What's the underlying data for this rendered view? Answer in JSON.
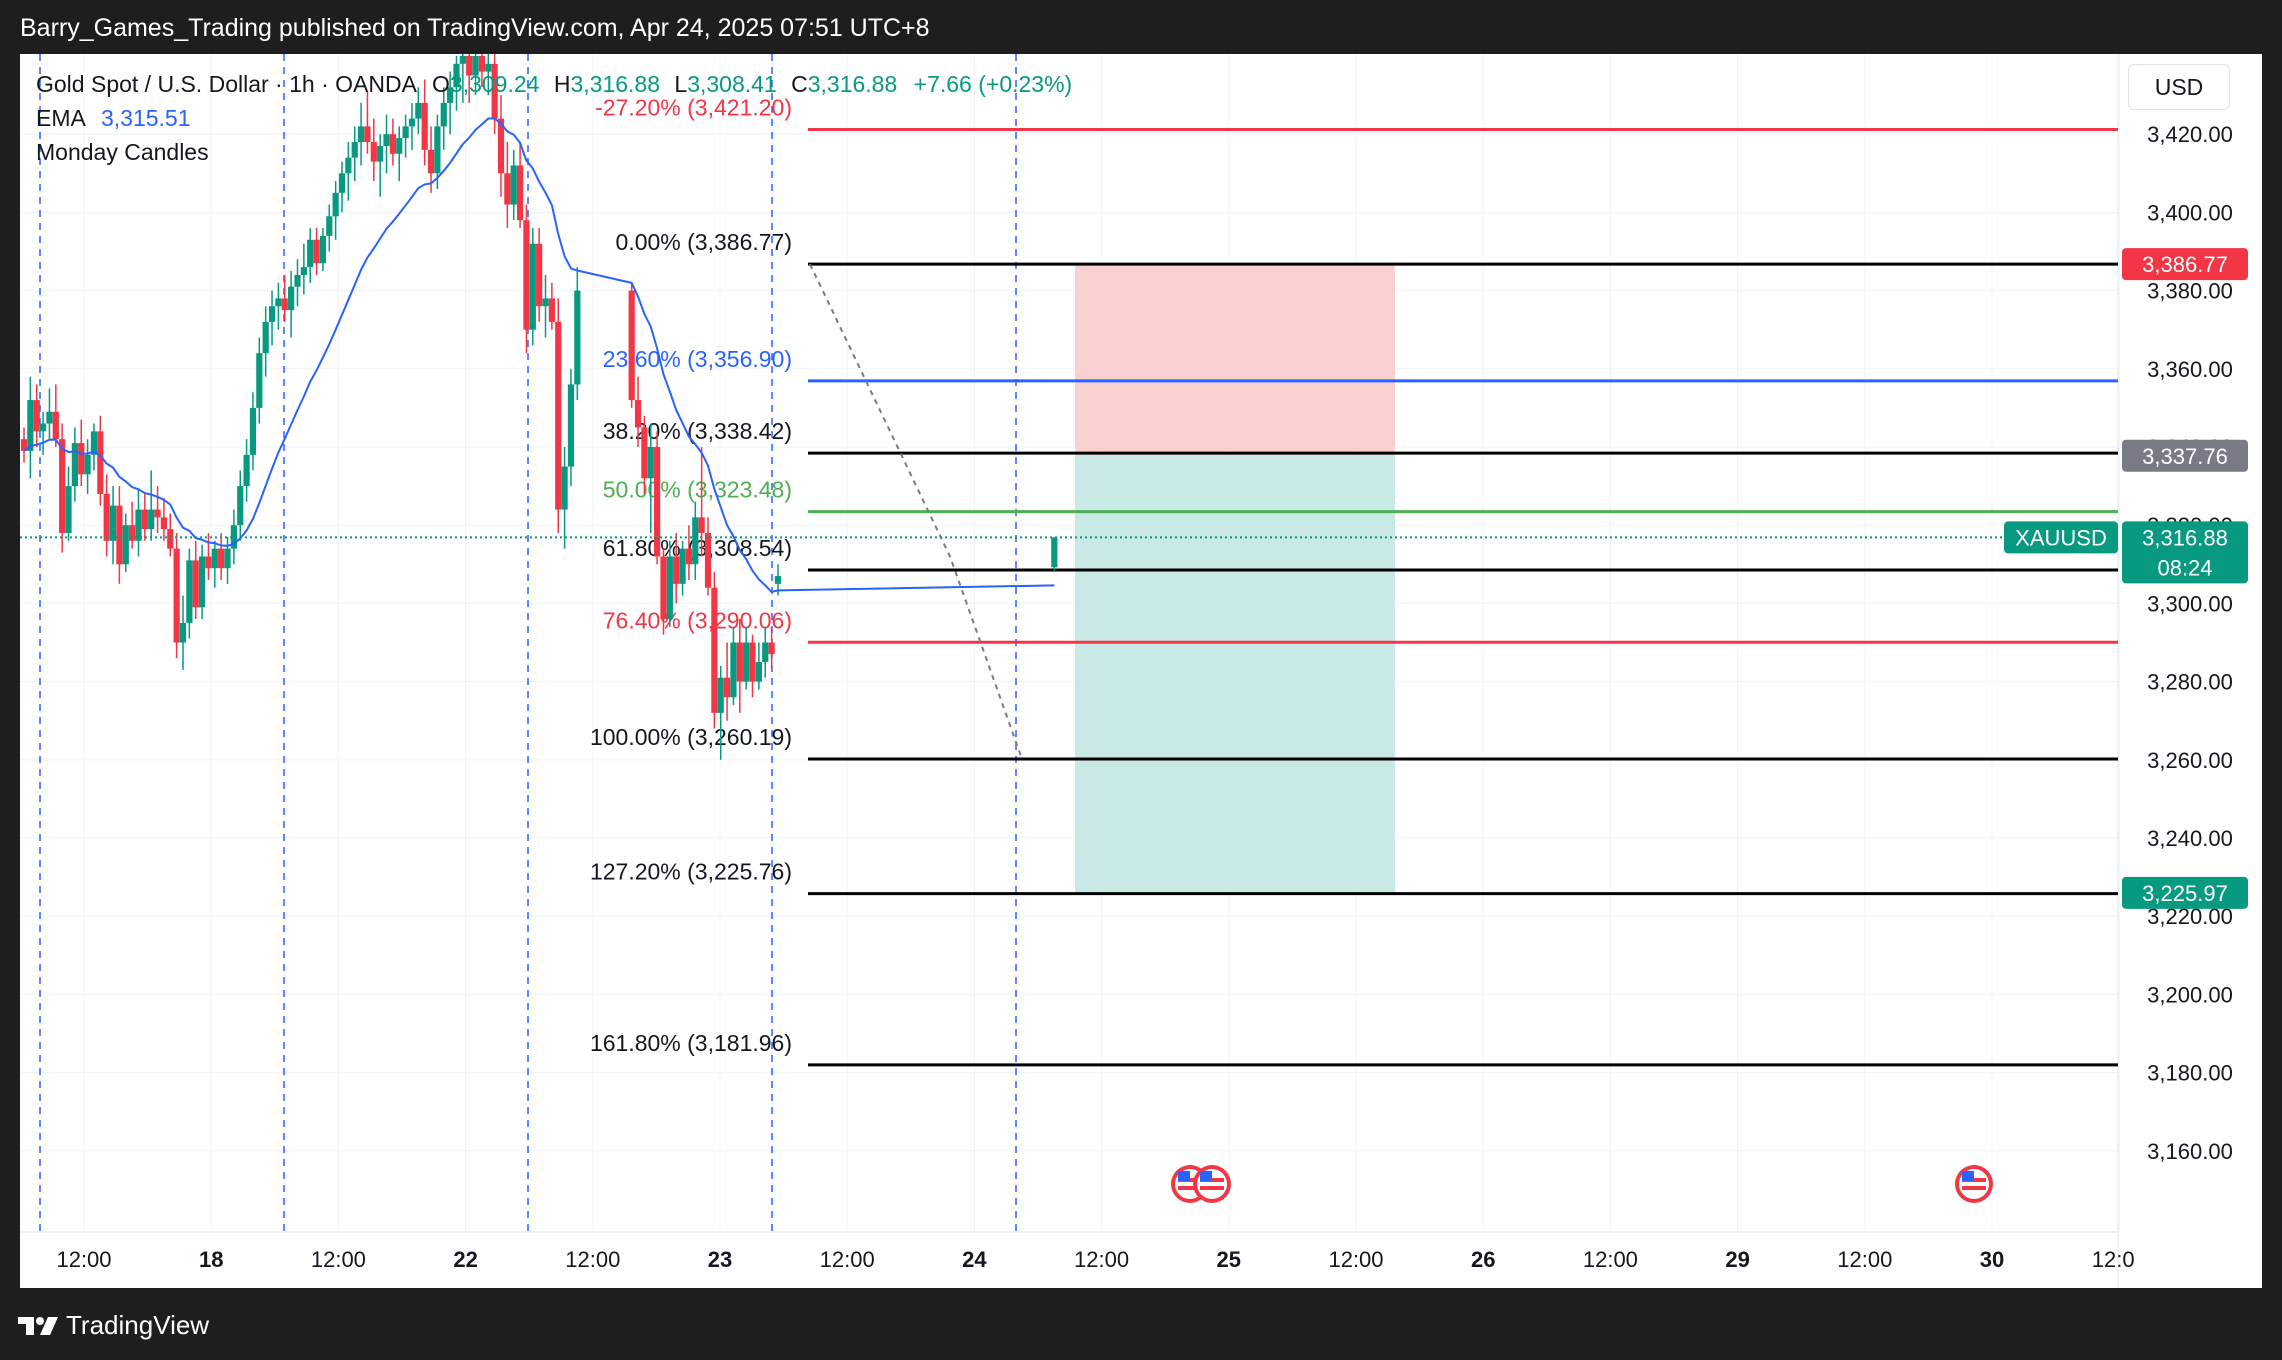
{
  "header": {
    "publisher": "Barry_Games_Trading published on TradingView.com, Apr 24, 2025 07:51 UTC+8"
  },
  "legend": {
    "symbol": "Gold Spot / U.S. Dollar · 1h · OANDA",
    "o_label": "O",
    "o_value": "3,309.24",
    "h_label": "H",
    "h_value": "3,316.88",
    "l_label": "L",
    "l_value": "3,308.41",
    "c_label": "C",
    "c_value": "3,316.88",
    "change": "+7.66 (+0.23%)",
    "ema_label": "EMA",
    "ema_value": "3,315.51",
    "indicator2": "Monday Candles"
  },
  "price_scale": {
    "currency": "USD"
  },
  "footer": {
    "brand": "TradingView"
  },
  "colors": {
    "up": "#089981",
    "down": "#f23645",
    "ema": "#2962ff",
    "fib_black": "#000000",
    "fib_blue": "#2962ff",
    "fib_green": "#4caf50",
    "fib_red": "#f23645",
    "stop_zone": "#f9d0d0",
    "target_zone": "#c8e9e5"
  },
  "chart_data": {
    "type": "candlestick",
    "symbol": "XAUUSD",
    "timeframe": "1h",
    "ylim": [
      3140,
      3440
    ],
    "y_ticks": [
      "3,160.00",
      "3,180.00",
      "3,200.00",
      "3,220.00",
      "3,240.00",
      "3,260.00",
      "3,280.00",
      "3,300.00",
      "3,320.00",
      "3,340.00",
      "3,360.00",
      "3,380.00",
      "3,400.00",
      "3,420.00"
    ],
    "x_ticks": [
      "12:00",
      "18",
      "12:00",
      "22",
      "12:00",
      "23",
      "12:00",
      "24",
      "12:00",
      "25",
      "12:00",
      "26",
      "12:00",
      "29",
      "12:00",
      "30",
      "12:0"
    ],
    "session_separators": [
      "18",
      "22",
      "23",
      "24"
    ],
    "ema_value": 3315.51,
    "candles": [
      {
        "o": 3342,
        "h": 3345,
        "l": 3336,
        "c": 3339
      },
      {
        "o": 3339,
        "h": 3358,
        "l": 3332,
        "c": 3352
      },
      {
        "o": 3352,
        "h": 3356,
        "l": 3340,
        "c": 3344
      },
      {
        "o": 3344,
        "h": 3349,
        "l": 3338,
        "c": 3346
      },
      {
        "o": 3346,
        "h": 3355,
        "l": 3342,
        "c": 3349
      },
      {
        "o": 3349,
        "h": 3356,
        "l": 3340,
        "c": 3342
      },
      {
        "o": 3342,
        "h": 3346,
        "l": 3313,
        "c": 3318
      },
      {
        "o": 3318,
        "h": 3335,
        "l": 3316,
        "c": 3330
      },
      {
        "o": 3330,
        "h": 3345,
        "l": 3326,
        "c": 3341
      },
      {
        "o": 3341,
        "h": 3347,
        "l": 3330,
        "c": 3333
      },
      {
        "o": 3333,
        "h": 3342,
        "l": 3328,
        "c": 3338
      },
      {
        "o": 3338,
        "h": 3346,
        "l": 3334,
        "c": 3344
      },
      {
        "o": 3344,
        "h": 3348,
        "l": 3325,
        "c": 3328
      },
      {
        "o": 3328,
        "h": 3333,
        "l": 3312,
        "c": 3316
      },
      {
        "o": 3316,
        "h": 3330,
        "l": 3310,
        "c": 3325
      },
      {
        "o": 3325,
        "h": 3330,
        "l": 3305,
        "c": 3310
      },
      {
        "o": 3310,
        "h": 3323,
        "l": 3308,
        "c": 3320
      },
      {
        "o": 3320,
        "h": 3326,
        "l": 3314,
        "c": 3316
      },
      {
        "o": 3316,
        "h": 3329,
        "l": 3312,
        "c": 3324
      },
      {
        "o": 3324,
        "h": 3328,
        "l": 3316,
        "c": 3319
      },
      {
        "o": 3319,
        "h": 3334,
        "l": 3316,
        "c": 3324
      },
      {
        "o": 3324,
        "h": 3330,
        "l": 3318,
        "c": 3322
      },
      {
        "o": 3322,
        "h": 3327,
        "l": 3316,
        "c": 3319
      },
      {
        "o": 3319,
        "h": 3323,
        "l": 3312,
        "c": 3314
      },
      {
        "o": 3314,
        "h": 3318,
        "l": 3286,
        "c": 3290
      },
      {
        "o": 3290,
        "h": 3302,
        "l": 3283,
        "c": 3295
      },
      {
        "o": 3295,
        "h": 3314,
        "l": 3291,
        "c": 3311
      },
      {
        "o": 3311,
        "h": 3316,
        "l": 3296,
        "c": 3299
      },
      {
        "o": 3299,
        "h": 3315,
        "l": 3296,
        "c": 3312
      },
      {
        "o": 3312,
        "h": 3318,
        "l": 3306,
        "c": 3309
      },
      {
        "o": 3309,
        "h": 3316,
        "l": 3304,
        "c": 3314
      },
      {
        "o": 3314,
        "h": 3318,
        "l": 3306,
        "c": 3309
      },
      {
        "o": 3309,
        "h": 3317,
        "l": 3305,
        "c": 3314
      },
      {
        "o": 3314,
        "h": 3324,
        "l": 3310,
        "c": 3320
      },
      {
        "o": 3320,
        "h": 3334,
        "l": 3316,
        "c": 3330
      },
      {
        "o": 3330,
        "h": 3342,
        "l": 3326,
        "c": 3338
      },
      {
        "o": 3338,
        "h": 3354,
        "l": 3334,
        "c": 3350
      },
      {
        "o": 3350,
        "h": 3368,
        "l": 3346,
        "c": 3364
      },
      {
        "o": 3364,
        "h": 3376,
        "l": 3358,
        "c": 3372
      },
      {
        "o": 3372,
        "h": 3380,
        "l": 3366,
        "c": 3376
      },
      {
        "o": 3376,
        "h": 3382,
        "l": 3370,
        "c": 3378
      },
      {
        "o": 3378,
        "h": 3384,
        "l": 3372,
        "c": 3375
      },
      {
        "o": 3375,
        "h": 3385,
        "l": 3368,
        "c": 3381
      },
      {
        "o": 3381,
        "h": 3388,
        "l": 3376,
        "c": 3384
      },
      {
        "o": 3384,
        "h": 3392,
        "l": 3379,
        "c": 3386
      },
      {
        "o": 3386,
        "h": 3396,
        "l": 3382,
        "c": 3393
      },
      {
        "o": 3393,
        "h": 3396,
        "l": 3384,
        "c": 3387
      },
      {
        "o": 3387,
        "h": 3396,
        "l": 3385,
        "c": 3394
      },
      {
        "o": 3394,
        "h": 3402,
        "l": 3390,
        "c": 3399
      },
      {
        "o": 3399,
        "h": 3408,
        "l": 3393,
        "c": 3405
      },
      {
        "o": 3405,
        "h": 3413,
        "l": 3400,
        "c": 3410
      },
      {
        "o": 3410,
        "h": 3418,
        "l": 3403,
        "c": 3414
      },
      {
        "o": 3414,
        "h": 3422,
        "l": 3408,
        "c": 3418
      },
      {
        "o": 3418,
        "h": 3428,
        "l": 3412,
        "c": 3422
      },
      {
        "o": 3422,
        "h": 3431,
        "l": 3415,
        "c": 3418
      },
      {
        "o": 3418,
        "h": 3424,
        "l": 3408,
        "c": 3413
      },
      {
        "o": 3413,
        "h": 3420,
        "l": 3404,
        "c": 3417
      },
      {
        "o": 3417,
        "h": 3425,
        "l": 3410,
        "c": 3420
      },
      {
        "o": 3420,
        "h": 3424,
        "l": 3412,
        "c": 3415
      },
      {
        "o": 3415,
        "h": 3422,
        "l": 3408,
        "c": 3419
      },
      {
        "o": 3419,
        "h": 3425,
        "l": 3414,
        "c": 3422
      },
      {
        "o": 3422,
        "h": 3428,
        "l": 3416,
        "c": 3424
      },
      {
        "o": 3424,
        "h": 3432,
        "l": 3420,
        "c": 3428
      },
      {
        "o": 3428,
        "h": 3434,
        "l": 3412,
        "c": 3416
      },
      {
        "o": 3416,
        "h": 3422,
        "l": 3405,
        "c": 3410
      },
      {
        "o": 3410,
        "h": 3425,
        "l": 3406,
        "c": 3422
      },
      {
        "o": 3422,
        "h": 3432,
        "l": 3416,
        "c": 3428
      },
      {
        "o": 3428,
        "h": 3436,
        "l": 3420,
        "c": 3432
      },
      {
        "o": 3432,
        "h": 3440,
        "l": 3426,
        "c": 3438
      },
      {
        "o": 3438,
        "h": 3442,
        "l": 3428,
        "c": 3440
      },
      {
        "o": 3440,
        "h": 3442,
        "l": 3428,
        "c": 3435
      },
      {
        "o": 3435,
        "h": 3442,
        "l": 3430,
        "c": 3440
      },
      {
        "o": 3440,
        "h": 3442,
        "l": 3432,
        "c": 3436
      },
      {
        "o": 3436,
        "h": 3442,
        "l": 3430,
        "c": 3438
      },
      {
        "o": 3438,
        "h": 3442,
        "l": 3420,
        "c": 3424
      },
      {
        "o": 3424,
        "h": 3430,
        "l": 3404,
        "c": 3410
      },
      {
        "o": 3410,
        "h": 3418,
        "l": 3396,
        "c": 3402
      },
      {
        "o": 3402,
        "h": 3416,
        "l": 3398,
        "c": 3412
      },
      {
        "o": 3412,
        "h": 3418,
        "l": 3396,
        "c": 3398
      },
      {
        "o": 3398,
        "h": 3402,
        "l": 3364,
        "c": 3370
      },
      {
        "o": 3370,
        "h": 3396,
        "l": 3366,
        "c": 3392
      },
      {
        "o": 3392,
        "h": 3396,
        "l": 3372,
        "c": 3376
      },
      {
        "o": 3376,
        "h": 3384,
        "l": 3368,
        "c": 3378
      },
      {
        "o": 3378,
        "h": 3382,
        "l": 3370,
        "c": 3372
      },
      {
        "o": 3372,
        "h": 3378,
        "l": 3318,
        "c": 3324
      },
      {
        "o": 3324,
        "h": 3340,
        "l": 3314,
        "c": 3335
      },
      {
        "o": 3335,
        "h": 3360,
        "l": 3330,
        "c": 3356
      },
      {
        "o": 3356,
        "h": 3386,
        "l": 3352,
        "c": 3380
      },
      {
        "o": 3380,
        "h": 3382,
        "l": 3350,
        "c": 3352
      },
      {
        "o": 3352,
        "h": 3358,
        "l": 3340,
        "c": 3345
      },
      {
        "o": 3345,
        "h": 3348,
        "l": 3328,
        "c": 3332
      },
      {
        "o": 3332,
        "h": 3346,
        "l": 3318,
        "c": 3340
      },
      {
        "o": 3340,
        "h": 3344,
        "l": 3310,
        "c": 3312
      },
      {
        "o": 3312,
        "h": 3314,
        "l": 3292,
        "c": 3296
      },
      {
        "o": 3296,
        "h": 3316,
        "l": 3294,
        "c": 3312
      },
      {
        "o": 3312,
        "h": 3318,
        "l": 3300,
        "c": 3305
      },
      {
        "o": 3305,
        "h": 3316,
        "l": 3302,
        "c": 3314
      },
      {
        "o": 3314,
        "h": 3320,
        "l": 3306,
        "c": 3310
      },
      {
        "o": 3310,
        "h": 3326,
        "l": 3306,
        "c": 3322
      },
      {
        "o": 3322,
        "h": 3340,
        "l": 3312,
        "c": 3318
      },
      {
        "o": 3318,
        "h": 3322,
        "l": 3302,
        "c": 3304
      },
      {
        "o": 3304,
        "h": 3308,
        "l": 3268,
        "c": 3272
      },
      {
        "o": 3272,
        "h": 3284,
        "l": 3260,
        "c": 3281
      },
      {
        "o": 3281,
        "h": 3290,
        "l": 3270,
        "c": 3276
      },
      {
        "o": 3276,
        "h": 3294,
        "l": 3274,
        "c": 3290
      },
      {
        "o": 3290,
        "h": 3296,
        "l": 3272,
        "c": 3280
      },
      {
        "o": 3280,
        "h": 3294,
        "l": 3278,
        "c": 3290
      },
      {
        "o": 3290,
        "h": 3292,
        "l": 3276,
        "c": 3280
      },
      {
        "o": 3280,
        "h": 3290,
        "l": 3278,
        "c": 3285
      },
      {
        "o": 3285,
        "h": 3294,
        "l": 3281,
        "c": 3290
      },
      {
        "o": 3290,
        "h": 3294,
        "l": 3283,
        "c": 3287
      },
      {
        "o": 3305,
        "h": 3310,
        "l": 3302,
        "c": 3307
      },
      {
        "o": 3309.24,
        "h": 3316.88,
        "l": 3308.41,
        "c": 3316.88
      }
    ],
    "fib_levels": [
      {
        "label": "0.00% (3,386.77)",
        "value": 3386.77,
        "color": "#000000"
      },
      {
        "label": "23.60% (3,356.90)",
        "value": 3356.9,
        "color": "#2962ff"
      },
      {
        "label": "38.20% (3,338.42)",
        "value": 3338.42,
        "color": "#000000"
      },
      {
        "label": "50.00% (3,323.48)",
        "value": 3323.48,
        "color": "#4caf50"
      },
      {
        "label": "61.80% (3,308.54)",
        "value": 3308.54,
        "color": "#000000"
      },
      {
        "label": "76.40% (3,290.06)",
        "value": 3290.06,
        "color": "#f23645"
      },
      {
        "label": "100.00% (3,260.19)",
        "value": 3260.19,
        "color": "#000000"
      },
      {
        "label": "127.20% (3,225.76)",
        "value": 3225.76,
        "color": "#000000"
      },
      {
        "label": "161.80% (3,181.96)",
        "value": 3181.96,
        "color": "#000000"
      },
      {
        "label": "-27.20% (3,421.20)",
        "value": 3421.2,
        "color": "#f23645"
      }
    ],
    "position": {
      "type": "short",
      "stop": 3386.77,
      "entry": 3337.76,
      "target": 3225.97
    },
    "price_labels": [
      {
        "text": "3,386.77",
        "value": 3386.77,
        "bg": "#f23645"
      },
      {
        "text": "3,337.76",
        "value": 3337.76,
        "bg": "#787b86"
      },
      {
        "text": "3,225.97",
        "value": 3225.97,
        "bg": "#089981"
      }
    ],
    "last_price": {
      "symbol": "XAUUSD",
      "price": "3,316.88",
      "value": 3316.88,
      "countdown": "08:24"
    }
  }
}
